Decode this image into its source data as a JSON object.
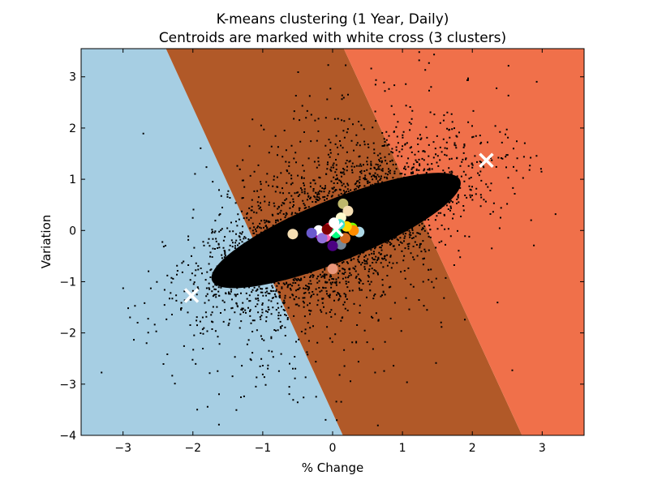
{
  "chart_data": {
    "type": "scatter",
    "title": "K-means clustering (1 Year, Daily)",
    "subtitle": "Centroids are marked with white cross (3 clusters)",
    "xlabel": "% Change",
    "ylabel": "Variation",
    "xlim": [
      -3.6,
      3.6
    ],
    "ylim": [
      -4,
      3.55
    ],
    "xticks": [
      -3,
      -2,
      -1,
      0,
      1,
      2,
      3
    ],
    "yticks": [
      -4,
      -3,
      -2,
      -1,
      0,
      1,
      2,
      3
    ],
    "xtick_labels": [
      "−3",
      "−2",
      "−1",
      "0",
      "1",
      "2",
      "3"
    ],
    "ytick_labels": [
      "−4",
      "−3",
      "−2",
      "−1",
      "0",
      "1",
      "2",
      "3"
    ],
    "grid": false,
    "legend": "none",
    "regions": [
      {
        "cluster": 0,
        "color": "#a6cee3"
      },
      {
        "cluster": 1,
        "color": "#b15928"
      },
      {
        "cluster": 2,
        "color": "#f0704a"
      }
    ],
    "point_color": "#000000",
    "centroids": [
      {
        "x": -2.02,
        "y": -1.27
      },
      {
        "x": 0.05,
        "y": 0.02
      },
      {
        "x": 2.2,
        "y": 1.37
      }
    ],
    "centroid_color": "#ffffff",
    "highlight_points": [
      {
        "x": 0.15,
        "y": 0.52,
        "color": "#bdb76b"
      },
      {
        "x": 0.22,
        "y": 0.38,
        "color": "#f5deb3"
      },
      {
        "x": 0.12,
        "y": 0.25,
        "color": "#fffacd"
      },
      {
        "x": -0.57,
        "y": -0.07,
        "color": "#f5deb3"
      },
      {
        "x": 0.0,
        "y": -0.75,
        "color": "#e9967a"
      },
      {
        "x": 0.38,
        "y": -0.03,
        "color": "#add8e6"
      },
      {
        "x": 0.12,
        "y": -0.27,
        "color": "#778899"
      },
      {
        "x": 0.0,
        "y": -0.3,
        "color": "#4b0082"
      },
      {
        "x": -0.18,
        "y": -0.08,
        "color": "#8b008b"
      },
      {
        "x": -0.1,
        "y": -0.12,
        "color": "#ff69b4"
      },
      {
        "x": -0.2,
        "y": 0.0,
        "color": "#ffffff"
      },
      {
        "x": 0.28,
        "y": 0.05,
        "color": "#7cfc00"
      },
      {
        "x": 0.3,
        "y": 0.0,
        "color": "#ff8c00"
      },
      {
        "x": -0.05,
        "y": 0.05,
        "color": "#dc143c"
      },
      {
        "x": 0.05,
        "y": -0.05,
        "color": "#00ff7f"
      },
      {
        "x": -0.15,
        "y": -0.15,
        "color": "#9370db"
      },
      {
        "x": 0.2,
        "y": 0.08,
        "color": "#ffd700"
      },
      {
        "x": -0.08,
        "y": 0.02,
        "color": "#800000"
      },
      {
        "x": 0.1,
        "y": 0.12,
        "color": "#40e0d0"
      },
      {
        "x": 0.18,
        "y": -0.15,
        "color": "#d2691e"
      },
      {
        "x": -0.3,
        "y": -0.05,
        "color": "#6a5acd"
      },
      {
        "x": 0.02,
        "y": 0.15,
        "color": "#ffffff"
      }
    ]
  }
}
